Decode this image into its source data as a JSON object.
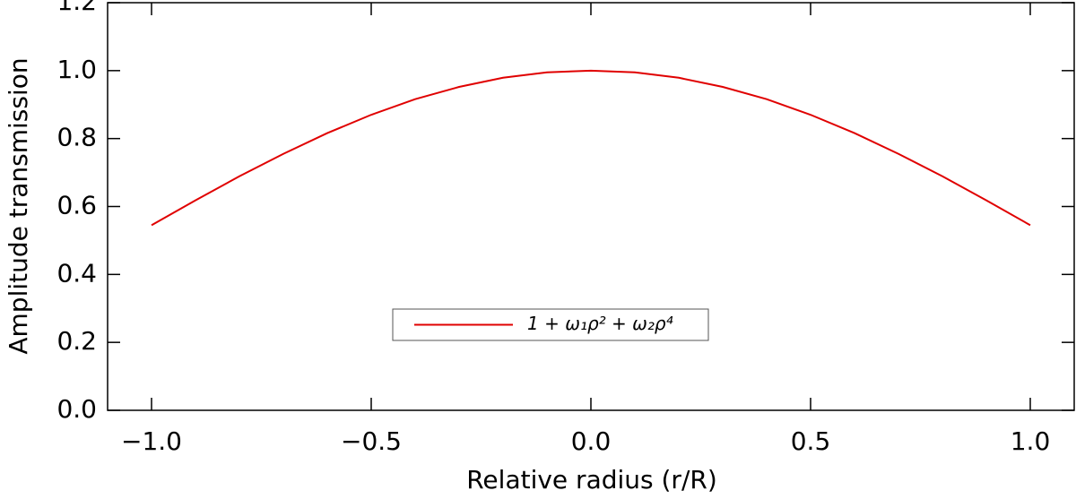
{
  "chart_data": {
    "type": "line",
    "x_label": "Relative radius (r/R)",
    "y_label": "Amplitude transmission",
    "x": [
      -1.0,
      -0.9,
      -0.8,
      -0.7,
      -0.6,
      -0.5,
      -0.4,
      -0.3,
      -0.2,
      -0.1,
      0.0,
      0.1,
      0.2,
      0.3,
      0.4,
      0.5,
      0.6,
      0.7,
      0.8,
      0.9,
      1.0
    ],
    "series": [
      {
        "name": "1 + ω₁ρ² + ω₂ρ⁴",
        "color": "#e00000",
        "values": [
          0.545,
          0.618,
          0.689,
          0.755,
          0.816,
          0.87,
          0.916,
          0.952,
          0.979,
          0.995,
          1.0,
          0.995,
          0.979,
          0.952,
          0.916,
          0.87,
          0.816,
          0.755,
          0.689,
          0.618,
          0.545
        ]
      }
    ],
    "xlim": [
      -1.1,
      1.1
    ],
    "ylim": [
      0,
      1.2
    ],
    "xticks": [
      {
        "value": -1.0,
        "label": "−1.0"
      },
      {
        "value": -0.5,
        "label": "−0.5"
      },
      {
        "value": 0,
        "label": "0.0"
      },
      {
        "value": 0.5,
        "label": "0.5"
      },
      {
        "value": 1.0,
        "label": "1.0"
      }
    ],
    "yticks": [
      {
        "value": 0,
        "label": "0.0"
      },
      {
        "value": 0.2,
        "label": "0.2"
      },
      {
        "value": 0.4,
        "label": "0.4"
      },
      {
        "value": 0.6,
        "label": "0.6"
      },
      {
        "value": 0.8,
        "label": "0.8"
      },
      {
        "value": 1.0,
        "label": "1.0"
      },
      {
        "value": 1.2,
        "label": "1.2"
      }
    ],
    "grid": false,
    "legend": "lower center"
  }
}
